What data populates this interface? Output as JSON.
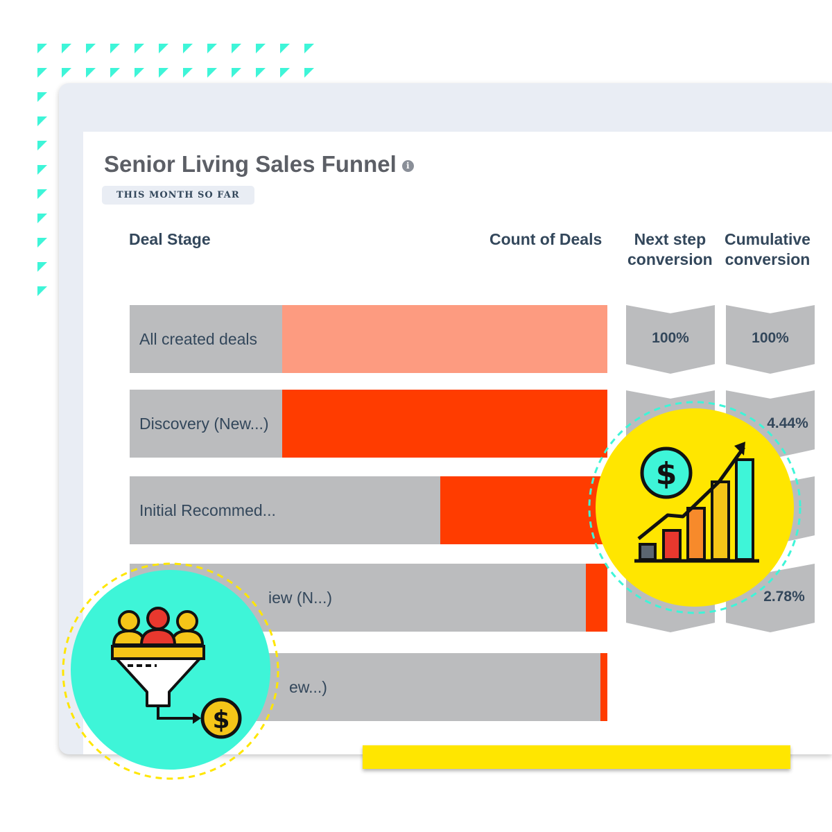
{
  "widget": {
    "title": "Senior Living Sales Funnel",
    "info_icon": "info-icon",
    "period_badge": "THIS MONTH SO FAR"
  },
  "columns": {
    "deal_stage": "Deal Stage",
    "count_of_deals": "Count of Deals",
    "next_step_line1": "Next step",
    "next_step_line2": "conversion",
    "cumulative_line1": "Cumulative",
    "cumulative_line2": "conversion"
  },
  "funnel": {
    "stages": [
      {
        "label": "All created deals",
        "fill_fraction": 0.68,
        "color": "#fd9b80"
      },
      {
        "label": "Discovery (New...)",
        "fill_fraction": 0.68,
        "color": "#ff3c00"
      },
      {
        "label": "Initial Recommed...",
        "fill_fraction": 0.35,
        "color": "#ff3c00"
      },
      {
        "label": "iew (N...)",
        "fill_fraction": 0.045,
        "color": "#ff3c00"
      },
      {
        "label": "ew...)",
        "fill_fraction": 0.015,
        "color": "#ff3c00"
      }
    ],
    "next_step_conversion": [
      "100%",
      "",
      "",
      "",
      ""
    ],
    "cumulative_conversion": [
      "100%",
      "4.44%",
      "",
      "2.78%",
      ""
    ]
  },
  "colors": {
    "teal": "#3ef5d8",
    "yellow": "#ffe600",
    "bar_gray": "#bbbcbe",
    "frame_gray": "#e9edf4"
  },
  "icons": {
    "left_badge": "funnel-people-dollar-icon",
    "right_badge": "growth-chart-dollar-icon"
  }
}
